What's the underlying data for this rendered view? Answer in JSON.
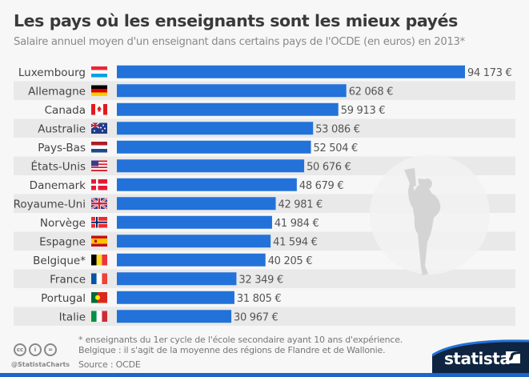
{
  "header": {
    "title": "Les pays où les enseignants sont les mieux payés",
    "subtitle": "Salaire annuel moyen d'un enseignant dans certains pays de l'OCDE (en euros) en 2013*"
  },
  "chart_data": {
    "type": "bar",
    "orientation": "horizontal",
    "title": "Les pays où les enseignants sont les mieux payés",
    "subtitle": "Salaire annuel moyen d'un enseignant dans certains pays de l'OCDE (en euros) en 2013*",
    "xlabel": "",
    "ylabel": "",
    "unit": "€",
    "grid": false,
    "xlim": [
      0,
      94173
    ],
    "categories": [
      "Luxembourg",
      "Allemagne",
      "Canada",
      "Australie",
      "Pays-Bas",
      "États-Unis",
      "Danemark",
      "Royaume-Uni",
      "Norvège",
      "Espagne",
      "Belgique*",
      "France",
      "Portugal",
      "Italie"
    ],
    "values": [
      94173,
      62068,
      59913,
      53086,
      52504,
      50676,
      48679,
      42981,
      41984,
      41594,
      40205,
      32349,
      31805,
      30967
    ],
    "value_labels": [
      "94 173 €",
      "62 068 €",
      "59 913 €",
      "53 086 €",
      "52 504 €",
      "50 676 €",
      "48 679 €",
      "42 981 €",
      "41 984 €",
      "41 594 €",
      "40 205 €",
      "32 349 €",
      "31 805 €",
      "30 967 €"
    ],
    "flags": [
      "luxembourg-flag",
      "germany-flag",
      "canada-flag",
      "australia-flag",
      "netherlands-flag",
      "usa-flag",
      "denmark-flag",
      "uk-flag",
      "norway-flag",
      "spain-flag",
      "belgium-flag",
      "france-flag",
      "portugal-flag",
      "italy-flag"
    ],
    "bar_color": "#2272d9",
    "stripe_color": "#e9e9e9"
  },
  "footer": {
    "note1": "* enseignants du 1er cycle de l'école secondaire ayant 10 ans d'expérience.",
    "note2": "Belgique : il s'agit de la moyenne des régions de Flandre et de Wallonie.",
    "source": "Source : OCDE",
    "handle": "@StatistaCharts",
    "brand": "statista",
    "license_icons": [
      "cc",
      "by",
      "nd"
    ]
  }
}
